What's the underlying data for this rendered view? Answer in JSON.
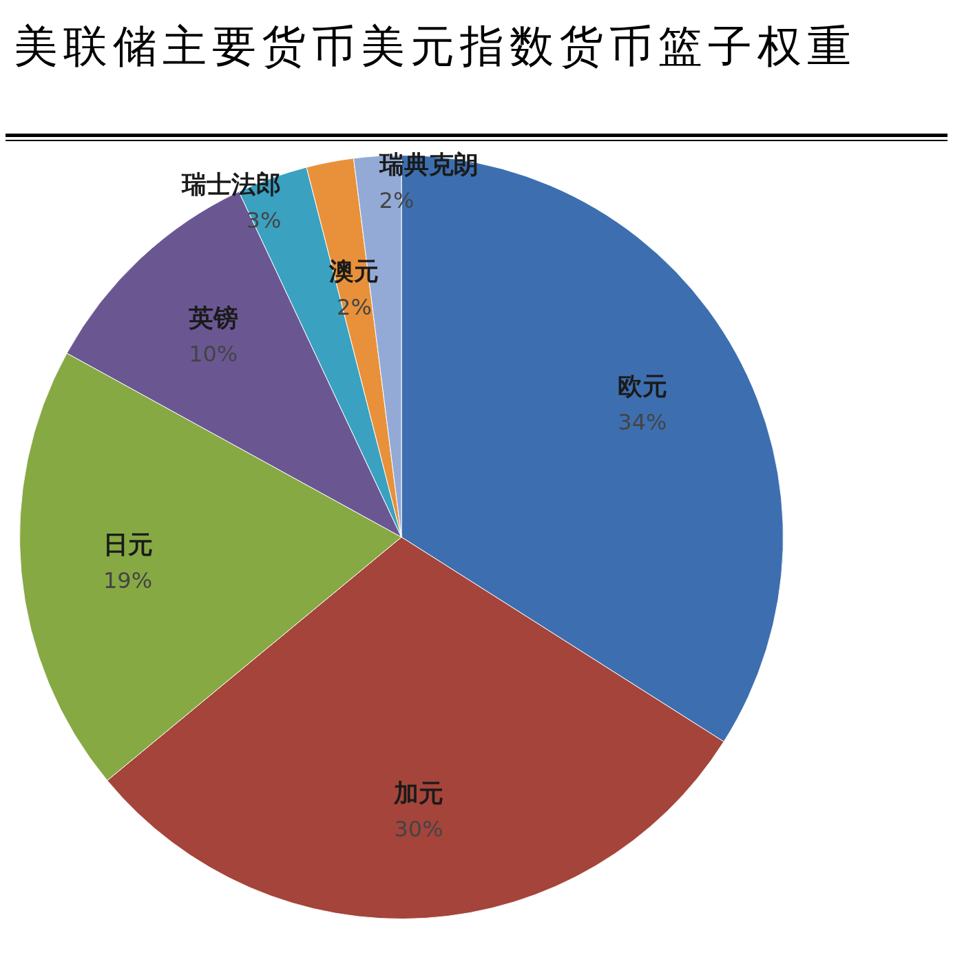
{
  "chart_data": {
    "type": "pie",
    "title": "美联储主要货币美元指数货币篮子权重",
    "categories": [
      "欧元",
      "加元",
      "日元",
      "英镑",
      "瑞士法郎",
      "澳元",
      "瑞典克朗"
    ],
    "values": [
      34,
      30,
      19,
      10,
      3,
      2,
      2
    ],
    "value_labels": [
      "34%",
      "30%",
      "19%",
      "10%",
      "3%",
      "2%",
      "2%"
    ],
    "colors": [
      "#3d6fb0",
      "#a5443a",
      "#86a943",
      "#6a5792",
      "#3aa1c0",
      "#e8913a",
      "#93aad6"
    ],
    "legend": false
  }
}
